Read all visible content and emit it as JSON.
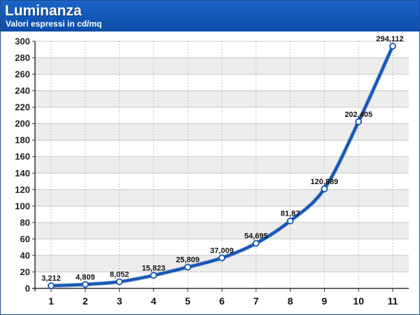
{
  "header": {
    "title": "Luminanza",
    "subtitle": "Valori espressi in cd/mq"
  },
  "colors": {
    "header_bg": "#0f55b5",
    "line": "#1557b8",
    "band": "#ededed",
    "marker_fill": "#ffffff"
  },
  "chart_data": {
    "type": "line",
    "title": "Luminanza",
    "subtitle": "Valori espressi in cd/mq",
    "xlabel": "",
    "ylabel": "",
    "categories": [
      "1",
      "2",
      "3",
      "4",
      "5",
      "6",
      "7",
      "8",
      "9",
      "10",
      "11"
    ],
    "series": [
      {
        "values": [
          3.212,
          4.809,
          8.052,
          15.823,
          25.809,
          37.009,
          54.695,
          81.87,
          120.889,
          202.405,
          294.112
        ],
        "labels": [
          "3,212",
          "4,809",
          "8,052",
          "15,823",
          "25,809",
          "37,009",
          "54,695",
          "81,87",
          "120,889",
          "202,405",
          "294,112"
        ]
      }
    ],
    "ylim": [
      0,
      300
    ],
    "yticks": [
      "0",
      "20",
      "40",
      "60",
      "80",
      "100",
      "120",
      "140",
      "160",
      "180",
      "200",
      "220",
      "240",
      "260",
      "280",
      "300"
    ],
    "grid": true,
    "legend": "none"
  }
}
